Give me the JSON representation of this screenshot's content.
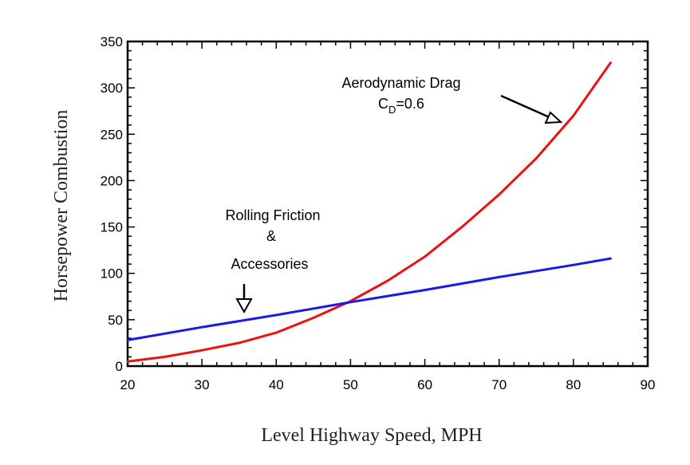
{
  "chart_data": {
    "type": "line",
    "title": "",
    "xlabel": "Level Highway Speed, MPH",
    "ylabel": "Horsepower Combustion",
    "xlim": [
      20,
      90
    ],
    "ylim": [
      0,
      350
    ],
    "x_ticks": [
      20,
      30,
      40,
      50,
      60,
      70,
      80,
      90
    ],
    "y_ticks": [
      0,
      50,
      100,
      150,
      200,
      250,
      300,
      350
    ],
    "grid": false,
    "legend": "none",
    "series": [
      {
        "name": "Aerodynamic Drag",
        "color": "#ee1111",
        "x": [
          20,
          25,
          30,
          35,
          40,
          45,
          50,
          55,
          60,
          65,
          70,
          75,
          80,
          85
        ],
        "y": [
          5,
          10,
          17,
          25,
          36,
          52,
          70,
          92,
          118,
          150,
          185,
          224,
          270,
          327
        ]
      },
      {
        "name": "Rolling Friction & Accessories",
        "color": "#1a1ae8",
        "x": [
          20,
          30,
          40,
          50,
          60,
          70,
          80,
          85
        ],
        "y": [
          28,
          42,
          55,
          69,
          82,
          96,
          109,
          116
        ]
      }
    ],
    "annotations": {
      "drag_label": "Aerodynamic Drag",
      "drag_cd_main": "C",
      "drag_cd_sub": "D",
      "drag_cd_value": "=0.6",
      "rolling_line1": "Rolling Friction",
      "rolling_line2": "&",
      "rolling_line3": "Accessories"
    }
  }
}
